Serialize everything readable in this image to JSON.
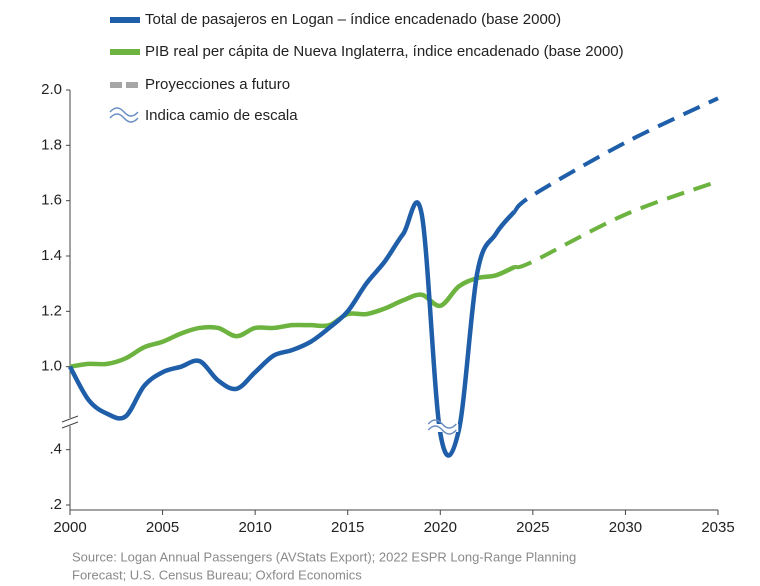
{
  "chart_data": {
    "type": "line",
    "legend": "top-left",
    "x": [
      2000,
      2001,
      2002,
      2003,
      2004,
      2005,
      2006,
      2007,
      2008,
      2009,
      2010,
      2011,
      2012,
      2013,
      2014,
      2015,
      2016,
      2017,
      2018,
      2019,
      2020,
      2021,
      2022,
      2023,
      2024
    ],
    "series": [
      {
        "name": "Total de pasajeros en Logan – índice encadenado (base 2000)",
        "color": "#1f5ea8",
        "values": [
          1.0,
          0.88,
          0.83,
          0.82,
          0.93,
          0.98,
          1.0,
          1.02,
          0.95,
          0.92,
          0.98,
          1.04,
          1.06,
          1.09,
          1.14,
          1.2,
          1.3,
          1.38,
          1.48,
          1.55,
          0.46,
          0.47,
          1.34,
          1.48,
          1.56
        ]
      },
      {
        "name": "PIB real per cápita de Nueva Inglaterra, índice encadenado (base 2000)",
        "color": "#6db33f",
        "values": [
          1.0,
          1.01,
          1.01,
          1.03,
          1.07,
          1.09,
          1.12,
          1.14,
          1.14,
          1.11,
          1.14,
          1.14,
          1.15,
          1.15,
          1.15,
          1.19,
          1.19,
          1.21,
          1.24,
          1.26,
          1.22,
          1.29,
          1.32,
          1.33,
          1.36
        ]
      }
    ],
    "projections": {
      "label": "Proyecciones a futuro",
      "color": "#a6a6a6",
      "x": [
        2024,
        2025,
        2030,
        2035
      ],
      "series": [
        {
          "color": "#1f5ea8",
          "values": [
            1.56,
            1.62,
            1.81,
            1.97
          ]
        },
        {
          "color": "#6db33f",
          "values": [
            1.36,
            1.38,
            1.55,
            1.67
          ]
        }
      ]
    },
    "break_label": "Indica camio de escala",
    "axis_break": [
      0.5,
      0.8
    ],
    "xlim": [
      2000,
      2035
    ],
    "xticks": [
      2000,
      2005,
      2010,
      2015,
      2020,
      2025,
      2030,
      2035
    ],
    "ylim": [
      0.2,
      2.0
    ],
    "yticks": [
      {
        "value": 0.2,
        "label": ".2"
      },
      {
        "value": 0.4,
        "label": ".4"
      },
      {
        "value": 1.0,
        "label": "1.0"
      },
      1.2,
      1.4,
      1.6,
      1.8,
      {
        "value": 2.0,
        "label": "2.0"
      }
    ],
    "grid": false,
    "source": [
      "Source: Logan Annual Passengers (AVStats Export); 2022 ESPR Long-Range Planning",
      "Forecast; U.S. Census Bureau; Oxford Economics"
    ]
  }
}
